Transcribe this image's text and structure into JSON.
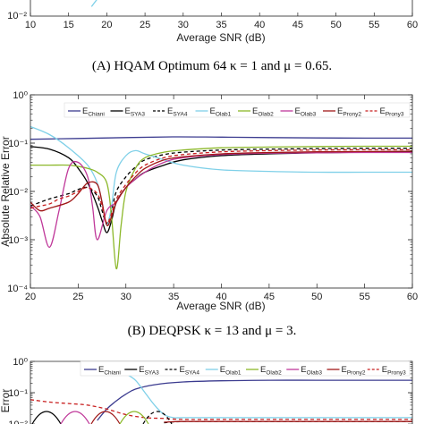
{
  "captions": {
    "a": "(A) HQAM Optimum 64 κ = 1 and μ = 0.65.",
    "b": "(B) DEQPSK κ = 13 and μ = 3."
  },
  "colors": {
    "Chiani": "#3b3b8f",
    "SYA3": "#000000",
    "SYA4": "#000000",
    "Olab1": "#7fd0e8",
    "Olab2": "#8cb82a",
    "Olab3": "#c0399a",
    "Prony2": "#a01818",
    "Prony3": "#c81e1e"
  },
  "chart_data": [
    {
      "type": "line",
      "panel": "A (partial)",
      "xlabel": "Average SNR (dB)",
      "xlim": [
        10,
        60
      ],
      "x_ticks": [
        "10",
        "15",
        "20",
        "25",
        "30",
        "35",
        "40",
        "45",
        "50",
        "55",
        "60"
      ],
      "y_ticks": [
        "10⁻²"
      ],
      "series": [
        {
          "id": "Olab1",
          "x": [
            18,
            19,
            20,
            21,
            22
          ],
          "y": [
            0.06,
            0.035,
            0.02,
            0.012,
            0.0085
          ]
        }
      ]
    },
    {
      "type": "line",
      "panel": "B",
      "xlabel": "Average SNR (dB)",
      "ylabel": "Absolute Relative Error",
      "xlim": [
        20,
        60
      ],
      "ylim": [
        0.0001,
        1
      ],
      "yscale": "log",
      "x_ticks": [
        "20",
        "25",
        "30",
        "35",
        "40",
        "45",
        "50",
        "55",
        "60"
      ],
      "y_ticks": [
        "10⁰",
        "10⁻¹",
        "10⁻²",
        "10⁻³",
        "10⁻⁴"
      ],
      "legend": [
        {
          "id": "Chiani",
          "base": "E",
          "sub": "Chiani",
          "dash": false
        },
        {
          "id": "SYA3",
          "base": "E",
          "sub": "SYA3",
          "dash": false
        },
        {
          "id": "SYA4",
          "base": "E",
          "sub": "SYA4",
          "dash": true
        },
        {
          "id": "Olab1",
          "base": "E",
          "sub": "Olab1",
          "dash": false
        },
        {
          "id": "Olab2",
          "base": "E",
          "sub": "Olab2",
          "dash": false
        },
        {
          "id": "Olab3",
          "base": "E",
          "sub": "Olab3",
          "dash": false
        },
        {
          "id": "Prony2",
          "base": "E",
          "sub": "Prony2",
          "dash": false
        },
        {
          "id": "Prony3",
          "base": "E",
          "sub": "Prony3",
          "dash": true
        }
      ],
      "series": [
        {
          "id": "Chiani",
          "x": [
            20,
            25,
            30,
            35,
            40,
            45,
            50,
            55,
            60
          ],
          "y": [
            0.12,
            0.125,
            0.13,
            0.135,
            0.133,
            0.13,
            0.128,
            0.127,
            0.127
          ]
        },
        {
          "id": "SYA3",
          "x": [
            20,
            22,
            24,
            25,
            26,
            27,
            27.5,
            28,
            28.5,
            29,
            30,
            31,
            32,
            34,
            36,
            40,
            45,
            50,
            55,
            60
          ],
          "y": [
            0.085,
            0.075,
            0.05,
            0.03,
            0.015,
            0.005,
            0.0025,
            0.0014,
            0.0025,
            0.006,
            0.012,
            0.018,
            0.025,
            0.035,
            0.045,
            0.055,
            0.06,
            0.063,
            0.065,
            0.066
          ]
        },
        {
          "id": "SYA4",
          "x": [
            20,
            22,
            24,
            25,
            26,
            27,
            27.5,
            28,
            28.5,
            29,
            30,
            31,
            32,
            34,
            36,
            40,
            45,
            50,
            55,
            60
          ],
          "y": [
            0.005,
            0.007,
            0.009,
            0.011,
            0.012,
            0.008,
            0.004,
            0.0022,
            0.004,
            0.01,
            0.02,
            0.032,
            0.045,
            0.058,
            0.065,
            0.072,
            0.075,
            0.077,
            0.078,
            0.078
          ]
        },
        {
          "id": "Olab1",
          "x": [
            20,
            22,
            24,
            26,
            27,
            27.5,
            28,
            28.5,
            29,
            30,
            31,
            32,
            34,
            36,
            40,
            45,
            50,
            55,
            60
          ],
          "y": [
            0.22,
            0.15,
            0.08,
            0.035,
            0.015,
            0.006,
            0.002,
            0.005,
            0.025,
            0.055,
            0.07,
            0.06,
            0.045,
            0.035,
            0.028,
            0.026,
            0.025,
            0.025,
            0.025
          ]
        },
        {
          "id": "Olab2",
          "x": [
            20,
            22,
            24,
            25,
            26,
            27,
            28,
            28.5,
            29,
            29.5,
            30,
            31,
            32,
            34,
            36,
            40,
            45,
            50,
            55,
            60
          ],
          "y": [
            0.035,
            0.035,
            0.035,
            0.033,
            0.03,
            0.025,
            0.015,
            0.003,
            0.00025,
            0.002,
            0.01,
            0.03,
            0.05,
            0.065,
            0.072,
            0.08,
            0.083,
            0.085,
            0.086,
            0.086
          ]
        },
        {
          "id": "Olab3",
          "x": [
            20,
            21,
            22,
            23,
            24,
            25,
            26,
            26.5,
            27,
            28,
            29,
            30,
            32,
            34,
            36,
            40,
            45,
            50,
            55,
            60
          ],
          "y": [
            0.005,
            0.003,
            0.0007,
            0.004,
            0.03,
            0.04,
            0.02,
            0.005,
            0.001,
            0.004,
            0.006,
            0.012,
            0.025,
            0.04,
            0.05,
            0.058,
            0.062,
            0.063,
            0.064,
            0.064
          ]
        },
        {
          "id": "Prony2",
          "x": [
            20,
            21,
            22,
            24,
            25,
            26,
            27,
            27.5,
            28,
            28.5,
            29,
            30,
            31,
            32,
            34,
            36,
            40,
            45,
            50,
            55,
            60
          ],
          "y": [
            0.006,
            0.004,
            0.0045,
            0.006,
            0.009,
            0.015,
            0.014,
            0.006,
            0.002,
            0.003,
            0.006,
            0.012,
            0.02,
            0.03,
            0.045,
            0.052,
            0.06,
            0.064,
            0.066,
            0.067,
            0.068
          ]
        },
        {
          "id": "Prony3",
          "x": [
            20,
            21,
            22,
            23,
            24,
            25,
            26,
            27,
            27.5,
            28,
            28.5,
            29,
            30,
            31,
            32,
            34,
            36,
            40,
            45,
            50,
            55,
            60
          ],
          "y": [
            0.0045,
            0.005,
            0.0055,
            0.007,
            0.008,
            0.01,
            0.012,
            0.009,
            0.005,
            0.0022,
            0.0035,
            0.007,
            0.014,
            0.024,
            0.035,
            0.05,
            0.058,
            0.066,
            0.07,
            0.072,
            0.073,
            0.073
          ]
        }
      ]
    },
    {
      "type": "line",
      "panel": "C (partial)",
      "ylabel": "Error",
      "ylim": [
        0.01,
        1
      ],
      "yscale": "log",
      "y_ticks": [
        "10⁰",
        "10⁻¹",
        "10⁻²"
      ],
      "series": [
        {
          "id": "Chiani",
          "x": [
            27,
            28,
            29,
            30,
            31,
            33,
            36,
            40,
            45,
            50,
            55,
            60
          ],
          "y": [
            0.013,
            0.03,
            0.055,
            0.09,
            0.13,
            0.18,
            0.22,
            0.24,
            0.25,
            0.25,
            0.25,
            0.25
          ]
        },
        {
          "id": "Olab1",
          "x": [
            30,
            31,
            32,
            33,
            34,
            35,
            36,
            40,
            45,
            50,
            55,
            60
          ],
          "y": [
            0.4,
            0.25,
            0.1,
            0.04,
            0.02,
            0.016,
            0.016,
            0.016,
            0.016,
            0.016,
            0.016,
            0.016
          ]
        },
        {
          "id": "Prony3",
          "x": [
            20,
            22,
            24,
            26,
            28,
            30,
            32,
            34,
            36,
            40,
            45,
            50,
            55,
            60
          ],
          "y": [
            0.06,
            0.05,
            0.045,
            0.04,
            0.03,
            0.02,
            0.016,
            0.015,
            0.014,
            0.014,
            0.014,
            0.014,
            0.014,
            0.014
          ]
        },
        {
          "id": "SYA4",
          "x": [
            34,
            36,
            40,
            45,
            50,
            55,
            60
          ],
          "y": [
            0.011,
            0.012,
            0.012,
            0.012,
            0.012,
            0.012,
            0.012
          ]
        },
        {
          "id": "Prony2",
          "x": [
            34,
            36,
            40,
            45,
            50,
            55,
            60
          ],
          "y": [
            0.0115,
            0.012,
            0.012,
            0.012,
            0.012,
            0.012,
            0.012
          ]
        }
      ]
    }
  ]
}
